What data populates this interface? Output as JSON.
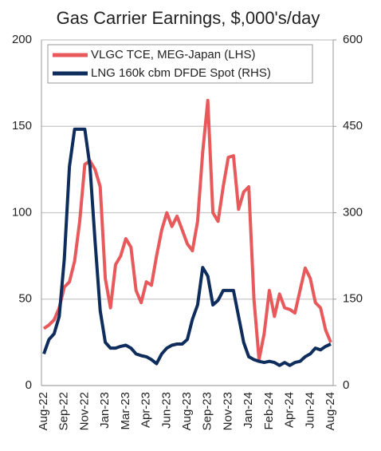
{
  "chart_data": {
    "type": "line",
    "title": "Gas Carrier Earnings, $,000's/day",
    "categories": [
      "Aug-22",
      null,
      null,
      null,
      "Sep-22",
      null,
      null,
      null,
      "Nov-22",
      null,
      null,
      null,
      "Jan-23",
      null,
      null,
      null,
      "Mar-23",
      null,
      null,
      null,
      "Apr-23",
      null,
      null,
      null,
      "Jun-23",
      null,
      null,
      null,
      "Aug-23",
      null,
      null,
      null,
      "Sep-23",
      null,
      null,
      null,
      "Nov-23",
      null,
      null,
      null,
      "Jan-24",
      null,
      null,
      null,
      "Feb-24",
      null,
      null,
      null,
      "Apr-24",
      null,
      null,
      null,
      "Jun-24",
      null,
      null,
      null,
      "Aug-24"
    ],
    "series": [
      {
        "name": "VLGC TCE, MEG-Japan (LHS)",
        "color": "#e8595c",
        "values": [
          33,
          35,
          38,
          45,
          57,
          60,
          72,
          95,
          128,
          130,
          125,
          115,
          62,
          45,
          70,
          75,
          85,
          80,
          55,
          48,
          60,
          58,
          75,
          90,
          100,
          92,
          98,
          90,
          82,
          78,
          95,
          135,
          165,
          100,
          95,
          115,
          132,
          133,
          102,
          112,
          115,
          50,
          15,
          30,
          55,
          40,
          53,
          45,
          44,
          42,
          55,
          68,
          62,
          48,
          45,
          32,
          25
        ]
      },
      {
        "name": "LNG 160k cbm DFDE Spot (RHS)",
        "color": "#0e2d5c",
        "axis": "y2",
        "values": [
          55,
          80,
          90,
          120,
          220,
          380,
          445,
          445,
          445,
          380,
          250,
          130,
          75,
          65,
          65,
          68,
          70,
          65,
          55,
          52,
          50,
          45,
          38,
          55,
          65,
          70,
          72,
          72,
          80,
          115,
          140,
          205,
          190,
          140,
          148,
          165,
          165,
          165,
          120,
          75,
          50,
          45,
          42,
          40,
          42,
          40,
          35,
          40,
          35,
          40,
          42,
          50,
          55,
          65,
          62,
          68,
          72
        ]
      }
    ],
    "ylim": [
      0,
      200
    ],
    "yticks": [
      0,
      50,
      100,
      150,
      200
    ],
    "y2lim": [
      0,
      600
    ],
    "y2ticks": [
      0,
      150,
      300,
      450,
      600
    ],
    "grid": true,
    "legend": "top-left"
  }
}
